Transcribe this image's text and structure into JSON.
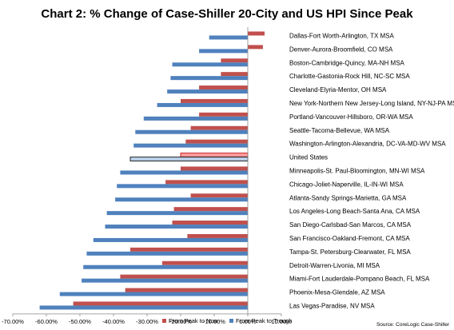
{
  "chart_data": {
    "type": "bar",
    "orientation": "horizontal",
    "title": "Chart 2: % Change of Case-Shiller 20-City and US HPI Since Peak",
    "source": "Source: CoreLogic Case-Shiller",
    "xlim": [
      -0.7,
      0.1
    ],
    "xticks": [
      "-70.00%",
      "-60.00%",
      "-50.00%",
      "-40.00%",
      "-30.00%",
      "-20.00%",
      "-10.00%",
      "0.00%",
      "10.00%"
    ],
    "grid": false,
    "legend_position": "bottom",
    "colors": {
      "now": "#c0504d",
      "trough": "#4f81bd",
      "highlight_trough": "#b9cde5",
      "highlight_border": "#000000"
    },
    "highlight_category": "United States",
    "categories": [
      "Dallas-Fort Worth-Arlington, TX MSA",
      "Denver-Aurora-Broomfield, CO MSA",
      "Boston-Cambridge-Quincy, MA-NH MSA",
      "Charlotte-Gastonia-Rock Hill, NC-SC MSA",
      "Cleveland-Elyria-Mentor, OH MSA",
      "New York-Northern New Jersey-Long Island, NY-NJ-PA MSA",
      "Portland-Vancouver-Hillsboro, OR-WA MSA",
      "Seattle-Tacoma-Bellevue, WA MSA",
      "Washington-Arlington-Alexandria, DC-VA-MD-WV MSA",
      "United States",
      "Minneapolis-St. Paul-Bloomington, MN-WI MSA",
      "Chicago-Joliet-Naperville, IL-IN-WI MSA",
      "Atlanta-Sandy Springs-Marietta, GA MSA",
      "Los Angeles-Long Beach-Santa Ana, CA MSA",
      "San Diego-Carlsbad-San Marcos, CA MSA",
      "San Francisco-Oakland-Fremont, CA MSA",
      "Tampa-St. Petersburg-Clearwater, FL MSA",
      "Detroit-Warren-Livonia, MI MSA",
      "Miami-Fort Lauderdale-Pompano Beach, FL MSA",
      "Phoenix-Mesa-Glendale, AZ MSA",
      "Las Vegas-Paradise, NV MSA"
    ],
    "series": [
      {
        "name": "From Peak to Now",
        "values": [
          0.05,
          0.045,
          -0.08,
          -0.08,
          -0.145,
          -0.2,
          -0.145,
          -0.17,
          -0.185,
          -0.2,
          -0.2,
          -0.245,
          -0.17,
          -0.22,
          -0.225,
          -0.18,
          -0.35,
          -0.255,
          -0.38,
          -0.365,
          -0.52
        ]
      },
      {
        "name": "From Peak to Trough",
        "values": [
          -0.115,
          -0.145,
          -0.225,
          -0.23,
          -0.24,
          -0.27,
          -0.31,
          -0.335,
          -0.34,
          -0.35,
          -0.38,
          -0.39,
          -0.395,
          -0.42,
          -0.425,
          -0.46,
          -0.48,
          -0.49,
          -0.495,
          -0.56,
          -0.62
        ]
      }
    ]
  }
}
